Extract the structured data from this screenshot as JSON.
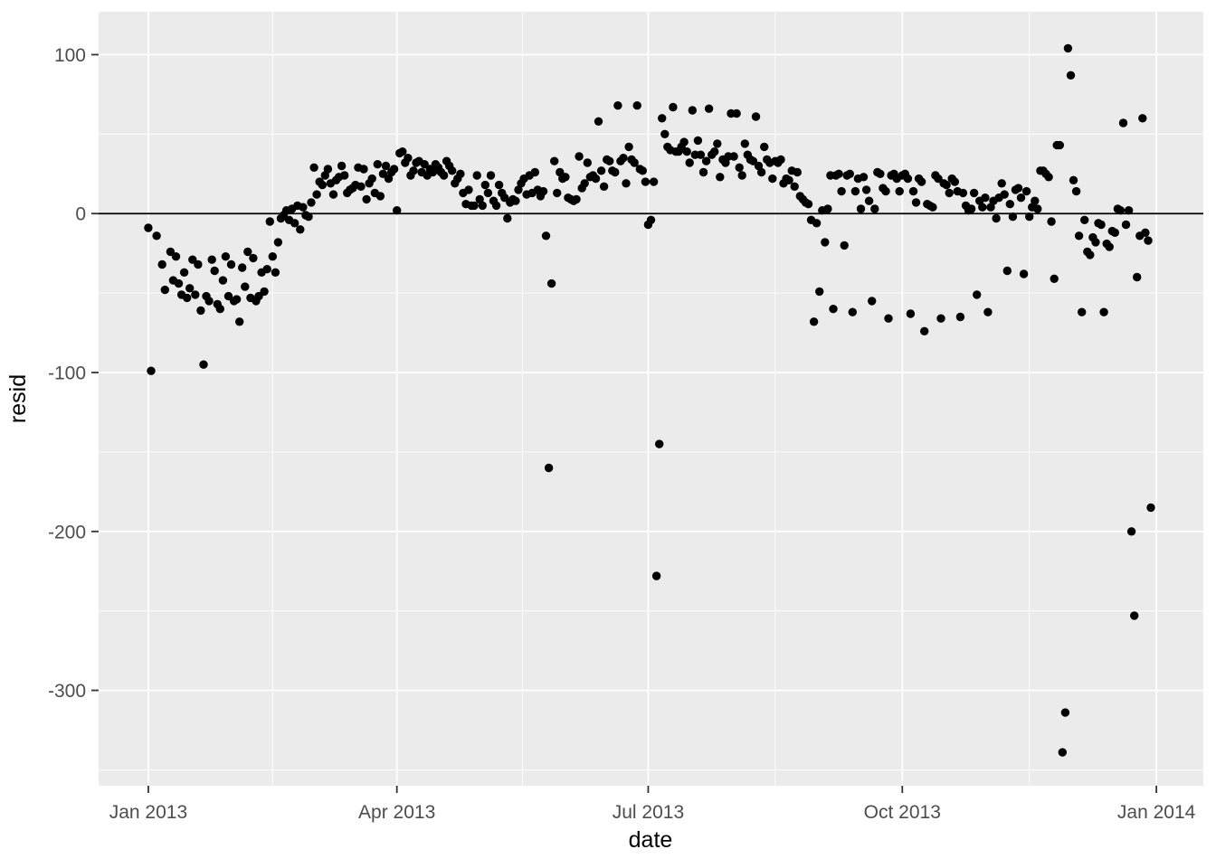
{
  "style": {
    "panel_bg": "#EBEBEB",
    "outer_bg": "#FFFFFF",
    "grid_color": "#FFFFFF",
    "point_color": "#000000",
    "reference_line_color": "#000000",
    "tick_mark_color": "#333333",
    "tick_label_color": "#4D4D4D",
    "axis_title_color": "#000000"
  },
  "chart_data": {
    "type": "scatter",
    "title": "",
    "xlabel": "date",
    "ylabel": "resid",
    "grid": true,
    "legend": "none",
    "reference_line_y": 0,
    "x_axis": {
      "label": "date",
      "domain": [
        "2012-12-14",
        "2014-01-18"
      ],
      "ticks": [
        {
          "date": "2013-01-01",
          "label": "Jan 2013"
        },
        {
          "date": "2013-04-01",
          "label": "Apr 2013"
        },
        {
          "date": "2013-07-01",
          "label": "Jul 2013"
        },
        {
          "date": "2013-10-01",
          "label": "Oct 2013"
        },
        {
          "date": "2014-01-01",
          "label": "Jan 2014"
        }
      ]
    },
    "y_axis": {
      "label": "resid",
      "domain": [
        -360,
        127
      ],
      "ticks": [
        {
          "value": 100,
          "label": "100"
        },
        {
          "value": 0,
          "label": "0"
        },
        {
          "value": -100,
          "label": "-100"
        },
        {
          "value": -200,
          "label": "-200"
        },
        {
          "value": -300,
          "label": "-300"
        }
      ]
    },
    "points": [
      [
        "2013-01-01",
        -9
      ],
      [
        "2013-01-02",
        -99
      ],
      [
        "2013-01-04",
        -14
      ],
      [
        "2013-01-06",
        -32
      ],
      [
        "2013-01-07",
        -48
      ],
      [
        "2013-01-09",
        -24
      ],
      [
        "2013-01-10",
        -42
      ],
      [
        "2013-01-11",
        -27
      ],
      [
        "2013-01-12",
        -44
      ],
      [
        "2013-01-13",
        -51
      ],
      [
        "2013-01-14",
        -37
      ],
      [
        "2013-01-15",
        -53
      ],
      [
        "2013-01-16",
        -47
      ],
      [
        "2013-01-17",
        -29
      ],
      [
        "2013-01-18",
        -51
      ],
      [
        "2013-01-19",
        -32
      ],
      [
        "2013-01-20",
        -61
      ],
      [
        "2013-01-21",
        -95
      ],
      [
        "2013-01-22",
        -52
      ],
      [
        "2013-01-23",
        -55
      ],
      [
        "2013-01-24",
        -29
      ],
      [
        "2013-01-25",
        -36
      ],
      [
        "2013-01-26",
        -57
      ],
      [
        "2013-01-27",
        -60
      ],
      [
        "2013-01-28",
        -42
      ],
      [
        "2013-01-29",
        -27
      ],
      [
        "2013-01-30",
        -52
      ],
      [
        "2013-01-31",
        -32
      ],
      [
        "2013-02-01",
        -55
      ],
      [
        "2013-02-02",
        -54
      ],
      [
        "2013-02-03",
        -68
      ],
      [
        "2013-02-04",
        -34
      ],
      [
        "2013-02-05",
        -46
      ],
      [
        "2013-02-06",
        -24
      ],
      [
        "2013-02-07",
        -53
      ],
      [
        "2013-02-08",
        -28
      ],
      [
        "2013-02-09",
        -55
      ],
      [
        "2013-02-10",
        -52
      ],
      [
        "2013-02-11",
        -37
      ],
      [
        "2013-02-12",
        -49
      ],
      [
        "2013-02-13",
        -35
      ],
      [
        "2013-02-14",
        -5
      ],
      [
        "2013-02-15",
        -27
      ],
      [
        "2013-02-16",
        -37
      ],
      [
        "2013-02-17",
        -18
      ],
      [
        "2013-02-18",
        -3
      ],
      [
        "2013-02-19",
        -1
      ],
      [
        "2013-02-20",
        2
      ],
      [
        "2013-02-21",
        -4
      ],
      [
        "2013-02-22",
        3
      ],
      [
        "2013-02-23",
        -6
      ],
      [
        "2013-02-24",
        5
      ],
      [
        "2013-02-25",
        -10
      ],
      [
        "2013-02-26",
        4
      ],
      [
        "2013-02-27",
        -1
      ],
      [
        "2013-02-28",
        -2
      ],
      [
        "2013-03-01",
        7
      ],
      [
        "2013-03-02",
        29
      ],
      [
        "2013-03-03",
        12
      ],
      [
        "2013-03-04",
        20
      ],
      [
        "2013-03-05",
        18
      ],
      [
        "2013-03-06",
        24
      ],
      [
        "2013-03-07",
        28
      ],
      [
        "2013-03-08",
        19
      ],
      [
        "2013-03-09",
        12
      ],
      [
        "2013-03-10",
        21
      ],
      [
        "2013-03-11",
        23
      ],
      [
        "2013-03-12",
        30
      ],
      [
        "2013-03-13",
        24
      ],
      [
        "2013-03-14",
        13
      ],
      [
        "2013-03-15",
        15
      ],
      [
        "2013-03-16",
        16
      ],
      [
        "2013-03-17",
        18
      ],
      [
        "2013-03-18",
        29
      ],
      [
        "2013-03-19",
        17
      ],
      [
        "2013-03-20",
        28
      ],
      [
        "2013-03-21",
        9
      ],
      [
        "2013-03-22",
        19
      ],
      [
        "2013-03-23",
        22
      ],
      [
        "2013-03-24",
        13
      ],
      [
        "2013-03-25",
        31
      ],
      [
        "2013-03-26",
        11
      ],
      [
        "2013-03-27",
        25
      ],
      [
        "2013-03-28",
        30
      ],
      [
        "2013-03-29",
        22
      ],
      [
        "2013-03-30",
        26
      ],
      [
        "2013-03-31",
        28
      ],
      [
        "2013-04-01",
        2
      ],
      [
        "2013-04-02",
        38
      ],
      [
        "2013-04-03",
        39
      ],
      [
        "2013-04-04",
        32
      ],
      [
        "2013-04-05",
        35
      ],
      [
        "2013-04-06",
        24
      ],
      [
        "2013-04-07",
        27
      ],
      [
        "2013-04-08",
        32
      ],
      [
        "2013-04-09",
        33
      ],
      [
        "2013-04-10",
        26
      ],
      [
        "2013-04-11",
        31
      ],
      [
        "2013-04-12",
        24
      ],
      [
        "2013-04-13",
        28
      ],
      [
        "2013-04-14",
        26
      ],
      [
        "2013-04-15",
        31
      ],
      [
        "2013-04-16",
        29
      ],
      [
        "2013-04-17",
        26
      ],
      [
        "2013-04-18",
        24
      ],
      [
        "2013-04-19",
        33
      ],
      [
        "2013-04-20",
        30
      ],
      [
        "2013-04-21",
        27
      ],
      [
        "2013-04-22",
        19
      ],
      [
        "2013-04-23",
        22
      ],
      [
        "2013-04-24",
        25
      ],
      [
        "2013-04-25",
        13
      ],
      [
        "2013-04-26",
        6
      ],
      [
        "2013-04-27",
        15
      ],
      [
        "2013-04-28",
        5
      ],
      [
        "2013-04-29",
        5
      ],
      [
        "2013-04-30",
        24
      ],
      [
        "2013-05-01",
        9
      ],
      [
        "2013-05-02",
        5
      ],
      [
        "2013-05-03",
        18
      ],
      [
        "2013-05-04",
        13
      ],
      [
        "2013-05-05",
        24
      ],
      [
        "2013-05-06",
        8
      ],
      [
        "2013-05-07",
        5
      ],
      [
        "2013-05-08",
        18
      ],
      [
        "2013-05-09",
        13
      ],
      [
        "2013-05-10",
        10
      ],
      [
        "2013-05-11",
        -3
      ],
      [
        "2013-05-12",
        7
      ],
      [
        "2013-05-13",
        9
      ],
      [
        "2013-05-14",
        8
      ],
      [
        "2013-05-15",
        15
      ],
      [
        "2013-05-16",
        19
      ],
      [
        "2013-05-17",
        22
      ],
      [
        "2013-05-18",
        12
      ],
      [
        "2013-05-19",
        24
      ],
      [
        "2013-05-20",
        13
      ],
      [
        "2013-05-21",
        26
      ],
      [
        "2013-05-22",
        15
      ],
      [
        "2013-05-23",
        11
      ],
      [
        "2013-05-24",
        14
      ],
      [
        "2013-05-25",
        -14
      ],
      [
        "2013-05-26",
        -160
      ],
      [
        "2013-05-27",
        -44
      ],
      [
        "2013-05-28",
        33
      ],
      [
        "2013-05-29",
        13
      ],
      [
        "2013-05-30",
        26
      ],
      [
        "2013-05-31",
        22
      ],
      [
        "2013-06-01",
        23
      ],
      [
        "2013-06-02",
        10
      ],
      [
        "2013-06-03",
        9
      ],
      [
        "2013-06-04",
        8
      ],
      [
        "2013-06-05",
        9
      ],
      [
        "2013-06-06",
        36
      ],
      [
        "2013-06-07",
        16
      ],
      [
        "2013-06-08",
        19
      ],
      [
        "2013-06-09",
        32
      ],
      [
        "2013-06-10",
        23
      ],
      [
        "2013-06-11",
        24
      ],
      [
        "2013-06-12",
        22
      ],
      [
        "2013-06-13",
        58
      ],
      [
        "2013-06-14",
        27
      ],
      [
        "2013-06-15",
        17
      ],
      [
        "2013-06-16",
        34
      ],
      [
        "2013-06-17",
        33
      ],
      [
        "2013-06-18",
        27
      ],
      [
        "2013-06-19",
        26
      ],
      [
        "2013-06-20",
        68
      ],
      [
        "2013-06-21",
        33
      ],
      [
        "2013-06-22",
        35
      ],
      [
        "2013-06-23",
        19
      ],
      [
        "2013-06-24",
        42
      ],
      [
        "2013-06-25",
        34
      ],
      [
        "2013-06-26",
        32
      ],
      [
        "2013-06-27",
        68
      ],
      [
        "2013-06-28",
        28
      ],
      [
        "2013-06-29",
        27
      ],
      [
        "2013-06-30",
        20
      ],
      [
        "2013-07-01",
        -7
      ],
      [
        "2013-07-02",
        -4
      ],
      [
        "2013-07-03",
        20
      ],
      [
        "2013-07-04",
        -228
      ],
      [
        "2013-07-05",
        -145
      ],
      [
        "2013-07-06",
        60
      ],
      [
        "2013-07-07",
        50
      ],
      [
        "2013-07-08",
        42
      ],
      [
        "2013-07-09",
        40
      ],
      [
        "2013-07-10",
        67
      ],
      [
        "2013-07-11",
        39
      ],
      [
        "2013-07-12",
        39
      ],
      [
        "2013-07-13",
        42
      ],
      [
        "2013-07-14",
        45
      ],
      [
        "2013-07-15",
        39
      ],
      [
        "2013-07-16",
        32
      ],
      [
        "2013-07-17",
        65
      ],
      [
        "2013-07-18",
        37
      ],
      [
        "2013-07-19",
        46
      ],
      [
        "2013-07-20",
        37
      ],
      [
        "2013-07-21",
        26
      ],
      [
        "2013-07-22",
        33
      ],
      [
        "2013-07-23",
        66
      ],
      [
        "2013-07-24",
        37
      ],
      [
        "2013-07-25",
        39
      ],
      [
        "2013-07-26",
        44
      ],
      [
        "2013-07-27",
        23
      ],
      [
        "2013-07-28",
        34
      ],
      [
        "2013-07-29",
        32
      ],
      [
        "2013-07-30",
        36
      ],
      [
        "2013-07-31",
        63
      ],
      [
        "2013-08-01",
        36
      ],
      [
        "2013-08-02",
        63
      ],
      [
        "2013-08-03",
        29
      ],
      [
        "2013-08-04",
        24
      ],
      [
        "2013-08-05",
        44
      ],
      [
        "2013-08-06",
        37
      ],
      [
        "2013-08-07",
        34
      ],
      [
        "2013-08-08",
        33
      ],
      [
        "2013-08-09",
        61
      ],
      [
        "2013-08-10",
        30
      ],
      [
        "2013-08-11",
        26
      ],
      [
        "2013-08-12",
        42
      ],
      [
        "2013-08-13",
        34
      ],
      [
        "2013-08-14",
        32
      ],
      [
        "2013-08-15",
        22
      ],
      [
        "2013-08-16",
        33
      ],
      [
        "2013-08-17",
        32
      ],
      [
        "2013-08-18",
        34
      ],
      [
        "2013-08-19",
        19
      ],
      [
        "2013-08-20",
        22
      ],
      [
        "2013-08-21",
        21
      ],
      [
        "2013-08-22",
        27
      ],
      [
        "2013-08-23",
        17
      ],
      [
        "2013-08-24",
        26
      ],
      [
        "2013-08-25",
        11
      ],
      [
        "2013-08-26",
        9
      ],
      [
        "2013-08-27",
        7
      ],
      [
        "2013-08-28",
        6
      ],
      [
        "2013-08-29",
        -4
      ],
      [
        "2013-08-30",
        -68
      ],
      [
        "2013-08-31",
        -6
      ],
      [
        "2013-09-01",
        -49
      ],
      [
        "2013-09-02",
        2
      ],
      [
        "2013-09-03",
        -18
      ],
      [
        "2013-09-04",
        3
      ],
      [
        "2013-09-05",
        24
      ],
      [
        "2013-09-06",
        -60
      ],
      [
        "2013-09-07",
        24
      ],
      [
        "2013-09-08",
        25
      ],
      [
        "2013-09-09",
        14
      ],
      [
        "2013-09-10",
        -20
      ],
      [
        "2013-09-11",
        24
      ],
      [
        "2013-09-12",
        25
      ],
      [
        "2013-09-13",
        -62
      ],
      [
        "2013-09-14",
        14
      ],
      [
        "2013-09-15",
        22
      ],
      [
        "2013-09-16",
        3
      ],
      [
        "2013-09-17",
        23
      ],
      [
        "2013-09-18",
        15
      ],
      [
        "2013-09-19",
        8
      ],
      [
        "2013-09-20",
        -55
      ],
      [
        "2013-09-21",
        3
      ],
      [
        "2013-09-22",
        26
      ],
      [
        "2013-09-23",
        25
      ],
      [
        "2013-09-24",
        16
      ],
      [
        "2013-09-25",
        14
      ],
      [
        "2013-09-26",
        -66
      ],
      [
        "2013-09-27",
        24
      ],
      [
        "2013-09-28",
        25
      ],
      [
        "2013-09-29",
        22
      ],
      [
        "2013-09-30",
        14
      ],
      [
        "2013-10-01",
        24
      ],
      [
        "2013-10-02",
        25
      ],
      [
        "2013-10-03",
        22
      ],
      [
        "2013-10-04",
        -63
      ],
      [
        "2013-10-05",
        14
      ],
      [
        "2013-10-06",
        7
      ],
      [
        "2013-10-07",
        22
      ],
      [
        "2013-10-08",
        20
      ],
      [
        "2013-10-09",
        -74
      ],
      [
        "2013-10-10",
        6
      ],
      [
        "2013-10-11",
        5
      ],
      [
        "2013-10-12",
        4
      ],
      [
        "2013-10-13",
        24
      ],
      [
        "2013-10-14",
        22
      ],
      [
        "2013-10-15",
        -66
      ],
      [
        "2013-10-16",
        19
      ],
      [
        "2013-10-17",
        18
      ],
      [
        "2013-10-18",
        13
      ],
      [
        "2013-10-19",
        22
      ],
      [
        "2013-10-20",
        20
      ],
      [
        "2013-10-21",
        14
      ],
      [
        "2013-10-22",
        -65
      ],
      [
        "2013-10-23",
        13
      ],
      [
        "2013-10-24",
        5
      ],
      [
        "2013-10-25",
        2
      ],
      [
        "2013-10-26",
        3
      ],
      [
        "2013-10-27",
        13
      ],
      [
        "2013-10-28",
        -51
      ],
      [
        "2013-10-29",
        8
      ],
      [
        "2013-10-30",
        4
      ],
      [
        "2013-10-31",
        10
      ],
      [
        "2013-11-01",
        -62
      ],
      [
        "2013-11-02",
        4
      ],
      [
        "2013-11-03",
        8
      ],
      [
        "2013-11-04",
        -3
      ],
      [
        "2013-11-05",
        10
      ],
      [
        "2013-11-06",
        19
      ],
      [
        "2013-11-07",
        12
      ],
      [
        "2013-11-08",
        -36
      ],
      [
        "2013-11-09",
        6
      ],
      [
        "2013-11-10",
        -2
      ],
      [
        "2013-11-11",
        15
      ],
      [
        "2013-11-12",
        16
      ],
      [
        "2013-11-13",
        10
      ],
      [
        "2013-11-14",
        -38
      ],
      [
        "2013-11-15",
        14
      ],
      [
        "2013-11-16",
        -2
      ],
      [
        "2013-11-17",
        4
      ],
      [
        "2013-11-18",
        8
      ],
      [
        "2013-11-19",
        3
      ],
      [
        "2013-11-20",
        27
      ],
      [
        "2013-11-21",
        27
      ],
      [
        "2013-11-22",
        25
      ],
      [
        "2013-11-23",
        23
      ],
      [
        "2013-11-24",
        -5
      ],
      [
        "2013-11-25",
        -41
      ],
      [
        "2013-11-26",
        43
      ],
      [
        "2013-11-27",
        43
      ],
      [
        "2013-11-28",
        -339
      ],
      [
        "2013-11-29",
        -314
      ],
      [
        "2013-11-30",
        104
      ],
      [
        "2013-12-01",
        87
      ],
      [
        "2013-12-02",
        21
      ],
      [
        "2013-12-03",
        14
      ],
      [
        "2013-12-04",
        -14
      ],
      [
        "2013-12-05",
        -62
      ],
      [
        "2013-12-06",
        -4
      ],
      [
        "2013-12-07",
        -24
      ],
      [
        "2013-12-08",
        -26
      ],
      [
        "2013-12-09",
        -15
      ],
      [
        "2013-12-10",
        -18
      ],
      [
        "2013-12-11",
        -6
      ],
      [
        "2013-12-12",
        -7
      ],
      [
        "2013-12-13",
        -62
      ],
      [
        "2013-12-14",
        -19
      ],
      [
        "2013-12-15",
        -21
      ],
      [
        "2013-12-16",
        -11
      ],
      [
        "2013-12-17",
        -12
      ],
      [
        "2013-12-18",
        3
      ],
      [
        "2013-12-19",
        2
      ],
      [
        "2013-12-20",
        57
      ],
      [
        "2013-12-21",
        -7
      ],
      [
        "2013-12-22",
        2
      ],
      [
        "2013-12-23",
        -200
      ],
      [
        "2013-12-24",
        -253
      ],
      [
        "2013-12-25",
        -40
      ],
      [
        "2013-12-26",
        -14
      ],
      [
        "2013-12-27",
        60
      ],
      [
        "2013-12-28",
        -12
      ],
      [
        "2013-12-29",
        -17
      ],
      [
        "2013-12-30",
        -185
      ]
    ]
  }
}
